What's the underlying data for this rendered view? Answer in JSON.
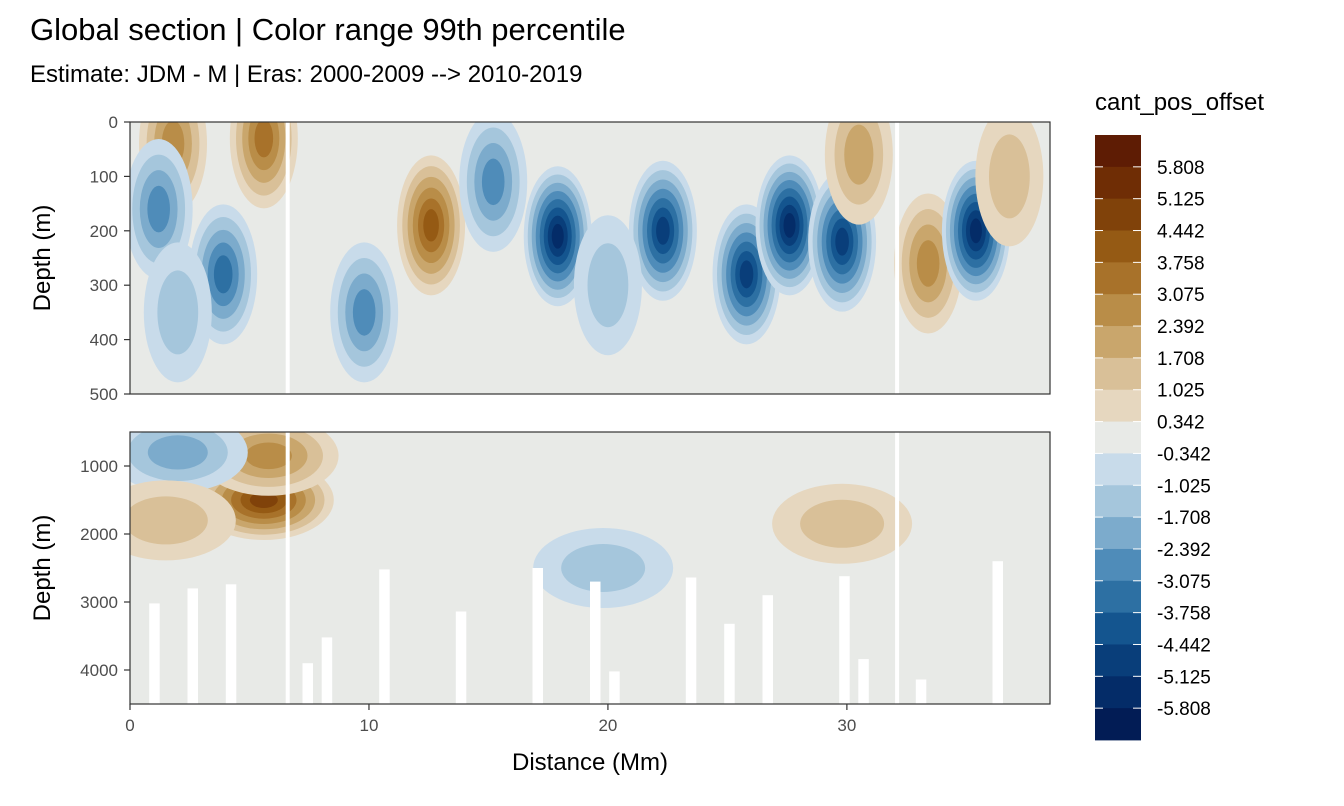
{
  "chart_data": {
    "type": "heatmap",
    "title": "Global section | Color range 99th percentile",
    "subtitle": "Estimate: JDM - M | Eras: 2000-2009 --> 2010-2019",
    "xlabel": "Distance (Mm)",
    "ylabel": "Depth (m)",
    "xlim": [
      0,
      38.5
    ],
    "x_ticks": [
      "0",
      "10",
      "20",
      "30"
    ],
    "x_tick_values": [
      0,
      10,
      20,
      30
    ],
    "panels": [
      {
        "ylim": [
          0,
          500
        ],
        "y_reversed": true,
        "y_ticks": [
          "0",
          "100",
          "200",
          "300",
          "400",
          "500"
        ],
        "y_tick_values": [
          0,
          100,
          200,
          300,
          400,
          500
        ]
      },
      {
        "ylim": [
          500,
          4500
        ],
        "y_reversed": true,
        "y_ticks": [
          "1000",
          "2000",
          "3000",
          "4000"
        ],
        "y_tick_values": [
          1000,
          2000,
          3000,
          4000
        ]
      }
    ],
    "legend": {
      "title": "cant_pos_offset",
      "placement": "right",
      "labels": [
        "5.808",
        "5.125",
        "4.442",
        "3.758",
        "3.075",
        "2.392",
        "1.708",
        "1.025",
        "0.342",
        "-0.342",
        "-1.025",
        "-1.708",
        "-2.392",
        "-3.075",
        "-3.758",
        "-4.442",
        "-5.125",
        "-5.808"
      ],
      "colors": [
        "#5e1c04",
        "#6f2d05",
        "#80420a",
        "#955a14",
        "#a8722a",
        "#b98d48",
        "#c9a66c",
        "#d9c098",
        "#e6d7bf",
        "#e8eae7",
        "#c8dbea",
        "#a5c6dc",
        "#7cabcc",
        "#4f8cb9",
        "#2d70a3",
        "#14558f",
        "#093e7a",
        "#042c68",
        "#021c55"
      ]
    },
    "gap_lines_x": [
      6.6,
      32.1
    ],
    "features_upper": [
      {
        "x": 1.8,
        "depth": 40,
        "value": 3.0
      },
      {
        "x": 5.6,
        "depth": 30,
        "value": 3.2
      },
      {
        "x": 3.9,
        "depth": 280,
        "value": -3.5
      },
      {
        "x": 1.2,
        "depth": 160,
        "value": -2.5
      },
      {
        "x": 9.8,
        "depth": 350,
        "value": -2.8
      },
      {
        "x": 12.6,
        "depth": 190,
        "value": 4.0
      },
      {
        "x": 15.2,
        "depth": 110,
        "value": -3.0
      },
      {
        "x": 17.9,
        "depth": 210,
        "value": -5.8
      },
      {
        "x": 22.3,
        "depth": 200,
        "value": -5.0
      },
      {
        "x": 25.8,
        "depth": 280,
        "value": -4.5
      },
      {
        "x": 27.6,
        "depth": 190,
        "value": -5.8
      },
      {
        "x": 29.8,
        "depth": 220,
        "value": -4.8
      },
      {
        "x": 33.4,
        "depth": 260,
        "value": 3.0
      },
      {
        "x": 35.4,
        "depth": 200,
        "value": -5.8
      },
      {
        "x": 2.0,
        "depth": 350,
        "value": -1.7
      },
      {
        "x": 20.0,
        "depth": 300,
        "value": -1.0
      },
      {
        "x": 30.5,
        "depth": 60,
        "value": 2.0
      },
      {
        "x": 36.8,
        "depth": 100,
        "value": 1.7
      }
    ],
    "features_lower": [
      {
        "x": 5.6,
        "depth": 1500,
        "value": 5.0
      },
      {
        "x": 5.8,
        "depth": 850,
        "value": 3.0
      },
      {
        "x": 2.0,
        "depth": 800,
        "value": -2.0
      },
      {
        "x": 19.8,
        "depth": 2500,
        "value": -0.7
      },
      {
        "x": 29.8,
        "depth": 1850,
        "value": 1.5
      },
      {
        "x": 1.5,
        "depth": 1800,
        "value": 1.0
      }
    ]
  }
}
